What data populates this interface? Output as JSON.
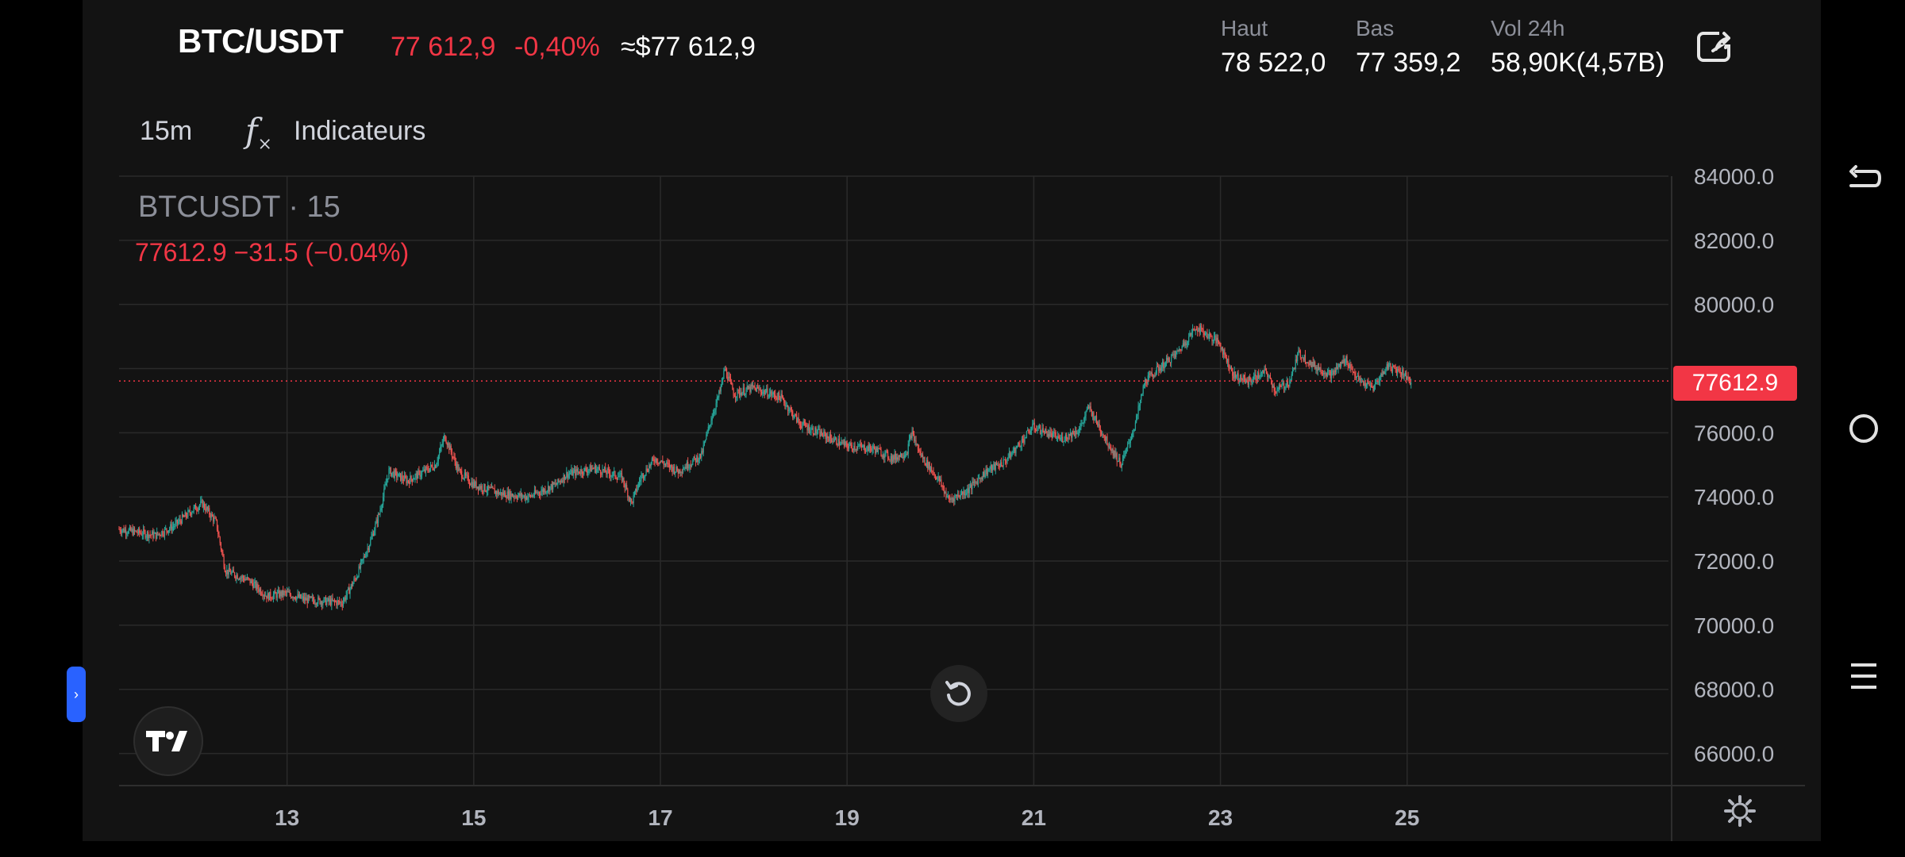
{
  "header": {
    "pair": "BTC/USDT",
    "last_price": "77 612,9",
    "change_pct": "-0,40%",
    "usd_equiv": "≈$77 612,9",
    "stats": [
      {
        "label": "Haut",
        "value": "78 522,0"
      },
      {
        "label": "Bas",
        "value": "77 359,2"
      },
      {
        "label": "Vol 24h",
        "value": "58,90K(4,57B)"
      }
    ]
  },
  "toolbar": {
    "timeframe": "15m",
    "indicators_label": "Indicateurs",
    "indicators_icon": "fx"
  },
  "legend": {
    "symbol": "BTCUSDT · 15",
    "values": "77612.9  −31.5 (−0.04%)"
  },
  "current_price_tag": "77612.9",
  "colors": {
    "up": "#26a69a",
    "down": "#ef5350",
    "accent_red": "#f23645",
    "background": "#131313",
    "grid": "#2a2a2a"
  },
  "chart_data": {
    "type": "candlestick",
    "interval": "15",
    "y_ticks": [
      "84000.0",
      "82000.0",
      "80000.0",
      "76000.0",
      "74000.0",
      "72000.0",
      "70000.0",
      "68000.0",
      "66000.0"
    ],
    "x_ticks": [
      "13",
      "15",
      "17",
      "19",
      "21",
      "23",
      "25"
    ],
    "ylim": [
      65000,
      84000
    ],
    "xlim": [
      11.2,
      27.8
    ],
    "last_price": 77612.9,
    "price_path": [
      [
        11.2,
        73000
      ],
      [
        11.6,
        72800
      ],
      [
        11.8,
        73100
      ],
      [
        12.0,
        73600
      ],
      [
        12.1,
        73800
      ],
      [
        12.25,
        73200
      ],
      [
        12.35,
        71700
      ],
      [
        12.6,
        71400
      ],
      [
        12.8,
        70900
      ],
      [
        13.0,
        71000
      ],
      [
        13.2,
        70800
      ],
      [
        13.6,
        70700
      ],
      [
        13.75,
        71500
      ],
      [
        13.9,
        72600
      ],
      [
        14.0,
        73500
      ],
      [
        14.1,
        74800
      ],
      [
        14.3,
        74500
      ],
      [
        14.6,
        75000
      ],
      [
        14.7,
        75900
      ],
      [
        14.85,
        74800
      ],
      [
        15.0,
        74400
      ],
      [
        15.3,
        74100
      ],
      [
        15.6,
        74000
      ],
      [
        15.9,
        74400
      ],
      [
        16.0,
        74700
      ],
      [
        16.3,
        74900
      ],
      [
        16.6,
        74600
      ],
      [
        16.7,
        73800
      ],
      [
        16.8,
        74600
      ],
      [
        16.95,
        75200
      ],
      [
        17.2,
        74800
      ],
      [
        17.45,
        75300
      ],
      [
        17.55,
        76400
      ],
      [
        17.65,
        77300
      ],
      [
        17.7,
        78000
      ],
      [
        17.8,
        77200
      ],
      [
        18.0,
        77400
      ],
      [
        18.3,
        77100
      ],
      [
        18.5,
        76300
      ],
      [
        18.7,
        76000
      ],
      [
        19.0,
        75600
      ],
      [
        19.3,
        75500
      ],
      [
        19.5,
        75200
      ],
      [
        19.65,
        75400
      ],
      [
        19.7,
        76000
      ],
      [
        19.8,
        75300
      ],
      [
        20.0,
        74500
      ],
      [
        20.1,
        73900
      ],
      [
        20.3,
        74200
      ],
      [
        20.5,
        74800
      ],
      [
        20.7,
        75100
      ],
      [
        20.9,
        75800
      ],
      [
        21.0,
        76200
      ],
      [
        21.3,
        75800
      ],
      [
        21.5,
        76100
      ],
      [
        21.6,
        76800
      ],
      [
        21.8,
        75700
      ],
      [
        21.95,
        75000
      ],
      [
        22.1,
        76300
      ],
      [
        22.2,
        77600
      ],
      [
        22.35,
        78000
      ],
      [
        22.55,
        78500
      ],
      [
        22.75,
        79300
      ],
      [
        23.0,
        78800
      ],
      [
        23.15,
        77800
      ],
      [
        23.3,
        77600
      ],
      [
        23.5,
        77900
      ],
      [
        23.6,
        77300
      ],
      [
        23.75,
        77600
      ],
      [
        23.85,
        78500
      ],
      [
        24.0,
        78100
      ],
      [
        24.2,
        77800
      ],
      [
        24.35,
        78300
      ],
      [
        24.5,
        77600
      ],
      [
        24.65,
        77400
      ],
      [
        24.8,
        78100
      ],
      [
        24.95,
        77900
      ],
      [
        25.05,
        77612.9
      ]
    ]
  }
}
